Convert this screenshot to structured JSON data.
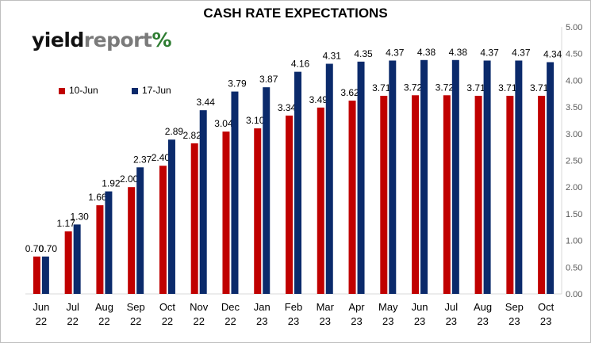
{
  "chart_data": {
    "type": "bar",
    "title": "CASH RATE EXPECTATIONS",
    "categories": [
      [
        "Jun",
        "22"
      ],
      [
        "Jul",
        "22"
      ],
      [
        "Aug",
        "22"
      ],
      [
        "Sep",
        "22"
      ],
      [
        "Oct",
        "22"
      ],
      [
        "Nov",
        "22"
      ],
      [
        "Dec",
        "22"
      ],
      [
        "Jan",
        "23"
      ],
      [
        "Feb",
        "23"
      ],
      [
        "Mar",
        "23"
      ],
      [
        "Apr",
        "23"
      ],
      [
        "May",
        "23"
      ],
      [
        "Jun",
        "23"
      ],
      [
        "Jul",
        "23"
      ],
      [
        "Aug",
        "23"
      ],
      [
        "Sep",
        "23"
      ],
      [
        "Oct",
        "23"
      ]
    ],
    "series": [
      {
        "name": "10-Jun",
        "color": "#c00000",
        "values": [
          0.7,
          1.17,
          1.66,
          2.0,
          2.4,
          2.82,
          3.04,
          3.1,
          3.34,
          3.49,
          3.62,
          3.71,
          3.72,
          3.72,
          3.71,
          3.71,
          3.71
        ],
        "labels": [
          "0.70",
          "1.17",
          "1.66",
          "2.00",
          "2.40",
          "2.82",
          "3.04",
          "3.10",
          "3.34",
          "3.49",
          "3.62",
          "3.71",
          "3.72",
          "3.72",
          "3.71",
          "3.71",
          "3.71"
        ]
      },
      {
        "name": "17-Jun",
        "color": "#0b2a6b",
        "values": [
          0.7,
          1.3,
          1.92,
          2.37,
          2.89,
          3.44,
          3.79,
          3.87,
          4.16,
          4.31,
          4.35,
          4.37,
          4.38,
          4.38,
          4.37,
          4.37,
          4.34
        ],
        "labels": [
          "0.70",
          "1.30",
          "1.92",
          "2.37",
          "2.89",
          "3.44",
          "3.79",
          "3.87",
          "4.16",
          "4.31",
          "4.35",
          "4.37",
          "4.38",
          "4.38",
          "4.37",
          "4.37",
          "4.34"
        ]
      }
    ],
    "ylim": [
      0,
      5
    ],
    "yticks": [
      "0.00",
      "0.50",
      "1.00",
      "1.50",
      "2.00",
      "2.50",
      "3.00",
      "3.50",
      "4.00",
      "4.50",
      "5.00"
    ],
    "y_axis_side": "right",
    "grid": false,
    "legend_position": "top-left"
  },
  "branding": {
    "logo_part1": "yield",
    "logo_part2": "report",
    "logo_part3": "%"
  }
}
